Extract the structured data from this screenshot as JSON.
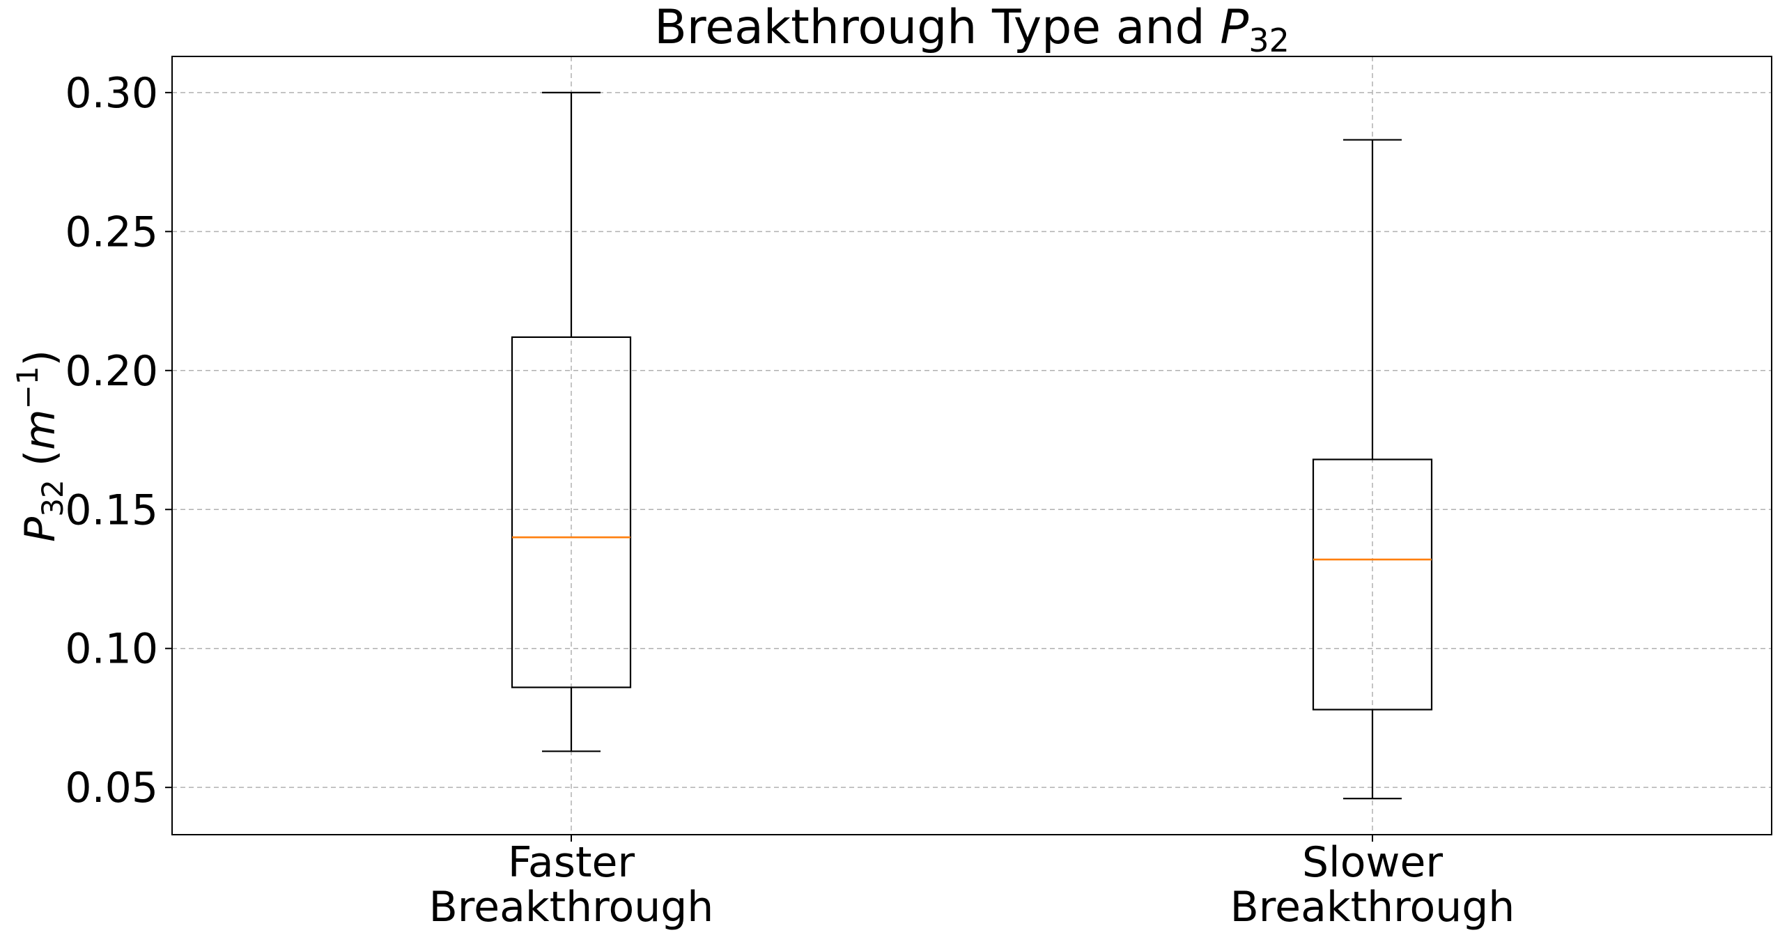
{
  "chart_data": {
    "type": "box",
    "title": {
      "main": "Breakthrough Type and ",
      "symbol": "P",
      "subscript": "32"
    },
    "ylabel": {
      "symbol": "P",
      "subscript": "32",
      "unit_open": " (",
      "unit_base": "m",
      "unit_exp": "−1",
      "unit_close": ")"
    },
    "ylim": [
      0.033,
      0.313
    ],
    "yticks": [
      0.05,
      0.1,
      0.15,
      0.2,
      0.25,
      0.3
    ],
    "ytick_labels": [
      "0.05",
      "0.10",
      "0.15",
      "0.20",
      "0.25",
      "0.30"
    ],
    "grid": true,
    "categories": [
      {
        "line1": "Faster",
        "line2": "Breakthrough"
      },
      {
        "line1": "Slower",
        "line2": "Breakthrough"
      }
    ],
    "boxes": [
      {
        "whisker_low": 0.063,
        "q1": 0.086,
        "median": 0.14,
        "q3": 0.212,
        "whisker_high": 0.3
      },
      {
        "whisker_low": 0.046,
        "q1": 0.078,
        "median": 0.132,
        "q3": 0.168,
        "whisker_high": 0.283
      }
    ],
    "colors": {
      "box": "#000000",
      "median": "#ff7f0e",
      "grid": "#b0b0b0"
    }
  }
}
